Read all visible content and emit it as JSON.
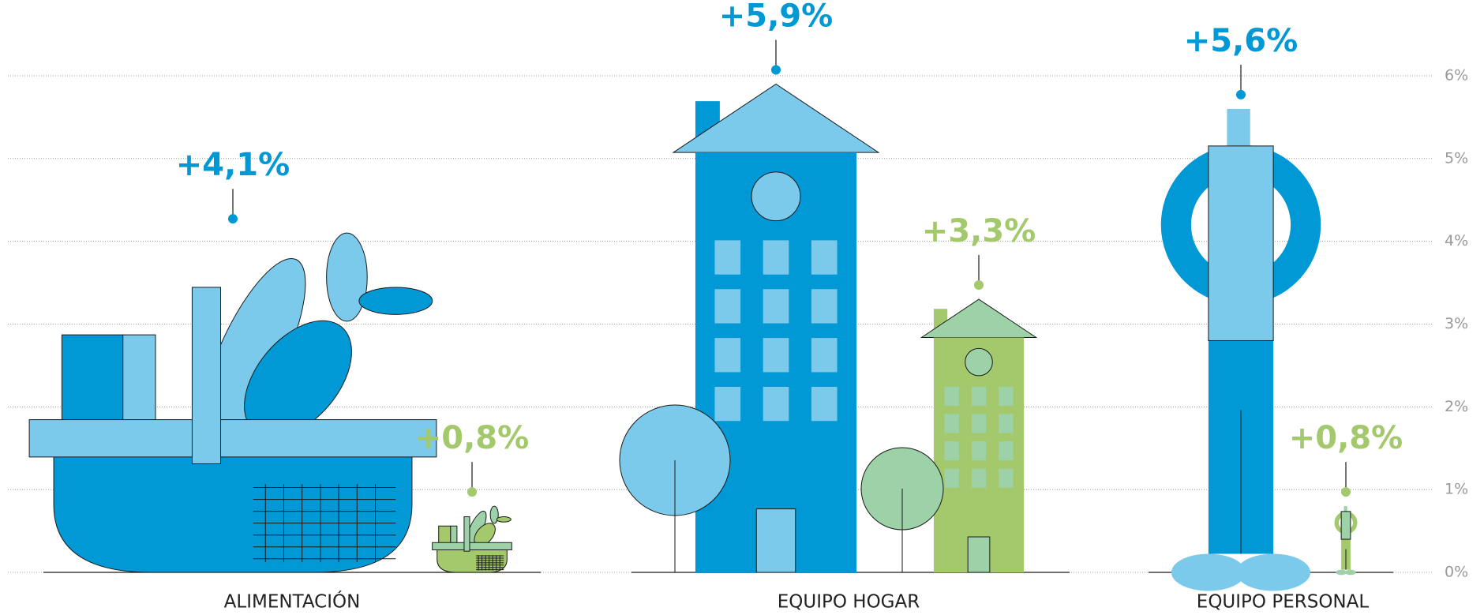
{
  "chart_data": {
    "type": "pictogram",
    "categories": [
      "ALIMENTACIÓN",
      "EQUIPO HOGAR",
      "EQUIPO PERSONAL"
    ],
    "series": [
      {
        "color": "#0099d6",
        "values": [
          4.1,
          5.9,
          5.6
        ],
        "value_labels": [
          "+4,1%",
          "+5,9%",
          "+5,6%"
        ]
      },
      {
        "color": "#a3c96c",
        "values": [
          0.8,
          3.3,
          0.8
        ],
        "value_labels": [
          "+0,8%",
          "+3,3%",
          "+0,8%"
        ]
      }
    ],
    "ylim": [
      0,
      6
    ],
    "yticks": [
      {
        "value": 0,
        "label": "0%"
      },
      {
        "value": 1,
        "label": "1%"
      },
      {
        "value": 2,
        "label": "2%"
      },
      {
        "value": 3,
        "label": "3%"
      },
      {
        "value": 4,
        "label": "4%"
      },
      {
        "value": 5,
        "label": "5%"
      },
      {
        "value": 6,
        "label": "6%"
      }
    ],
    "grid": true
  }
}
